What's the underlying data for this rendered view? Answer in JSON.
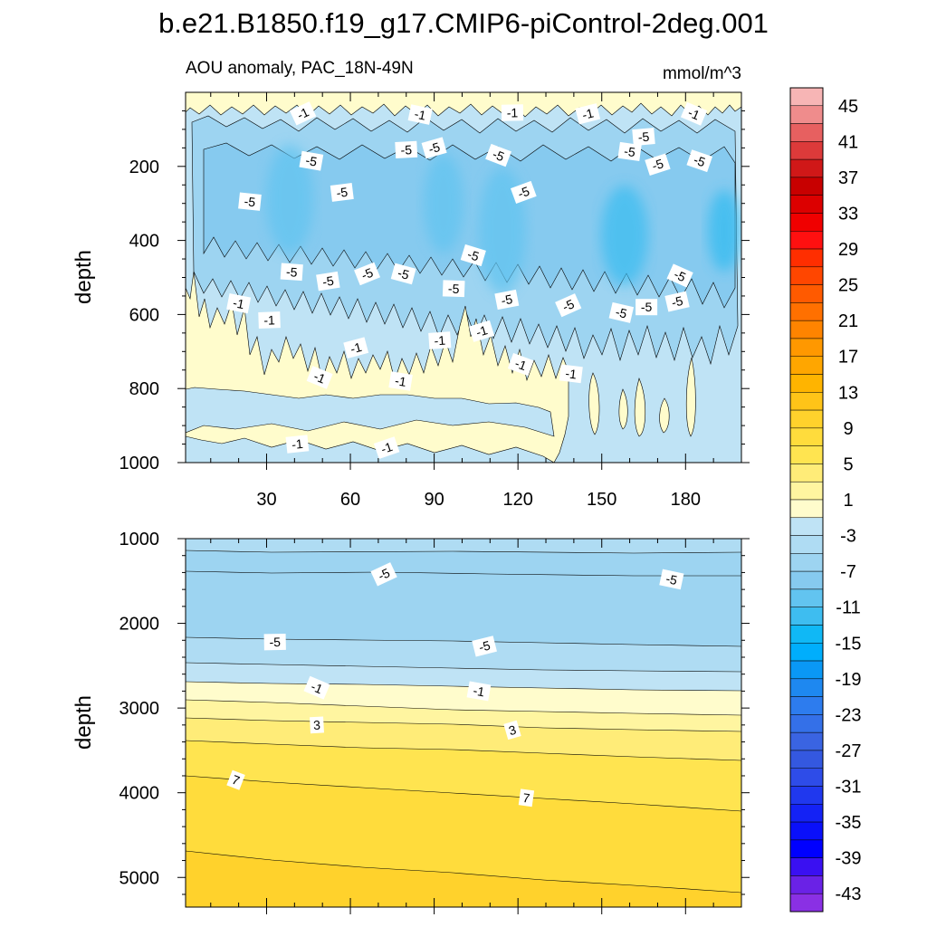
{
  "figure": {
    "title": "b.e21.B1850.f19_g17.CMIP6-piControl-2deg.001",
    "subtitle_left": "AOU anomaly, PAC_18N-49N",
    "subtitle_right": "mmol/m^3"
  },
  "chart_data": [
    {
      "type": "contour",
      "panel": "upper",
      "ylabel": "depth",
      "xlabel": "",
      "xlim": [
        1,
        200
      ],
      "ylim": [
        1000,
        0
      ],
      "x_ticks": [
        30,
        60,
        90,
        120,
        150,
        180
      ],
      "x_tick_labels": [
        "30",
        "60",
        "90",
        "120",
        "150",
        "180"
      ],
      "y_ticks": [
        200,
        400,
        600,
        800,
        1000
      ],
      "y_tick_labels": [
        "200",
        "400",
        "600",
        "800",
        "1000"
      ],
      "contour_labels": [
        {
          "text": "-1",
          "x": 43,
          "y": 57
        },
        {
          "text": "-1",
          "x": 85,
          "y": 60
        },
        {
          "text": "-1",
          "x": 118,
          "y": 55
        },
        {
          "text": "-1",
          "x": 145,
          "y": 58
        },
        {
          "text": "-1",
          "x": 183,
          "y": 58
        },
        {
          "text": "-5",
          "x": 46,
          "y": 185
        },
        {
          "text": "-5",
          "x": 80,
          "y": 155
        },
        {
          "text": "-5",
          "x": 90,
          "y": 150
        },
        {
          "text": "-5",
          "x": 113,
          "y": 170
        },
        {
          "text": "-5",
          "x": 160,
          "y": 160
        },
        {
          "text": "-5",
          "x": 165,
          "y": 120
        },
        {
          "text": "-5",
          "x": 170,
          "y": 195
        },
        {
          "text": "-5",
          "x": 185,
          "y": 185
        },
        {
          "text": "-5",
          "x": 24,
          "y": 295
        },
        {
          "text": "-5",
          "x": 57,
          "y": 270
        },
        {
          "text": "-5",
          "x": 122,
          "y": 270
        },
        {
          "text": "-5",
          "x": 104,
          "y": 440
        },
        {
          "text": "-5",
          "x": 39,
          "y": 485
        },
        {
          "text": "-5",
          "x": 52,
          "y": 510
        },
        {
          "text": "-5",
          "x": 66,
          "y": 490
        },
        {
          "text": "-5",
          "x": 79,
          "y": 490
        },
        {
          "text": "-5",
          "x": 97,
          "y": 530
        },
        {
          "text": "-5",
          "x": 116,
          "y": 560
        },
        {
          "text": "-5",
          "x": 138,
          "y": 575
        },
        {
          "text": "-5",
          "x": 157,
          "y": 595
        },
        {
          "text": "-5",
          "x": 166,
          "y": 580
        },
        {
          "text": "-5",
          "x": 177,
          "y": 565
        },
        {
          "text": "-5",
          "x": 178,
          "y": 495
        },
        {
          "text": "-1",
          "x": 20,
          "y": 570
        },
        {
          "text": "-1",
          "x": 31,
          "y": 615
        },
        {
          "text": "-1",
          "x": 62,
          "y": 690
        },
        {
          "text": "-1",
          "x": 49,
          "y": 770
        },
        {
          "text": "-1",
          "x": 78,
          "y": 780
        },
        {
          "text": "-1",
          "x": 92,
          "y": 670
        },
        {
          "text": "-1",
          "x": 107,
          "y": 645
        },
        {
          "text": "-1",
          "x": 121,
          "y": 735
        },
        {
          "text": "-1",
          "x": 139,
          "y": 760
        },
        {
          "text": "-1",
          "x": 41,
          "y": 950
        },
        {
          "text": "-1",
          "x": 73,
          "y": 960
        }
      ]
    },
    {
      "type": "contour",
      "panel": "lower",
      "ylabel": "depth",
      "xlabel": "",
      "xlim": [
        1,
        200
      ],
      "ylim": [
        5350,
        1000
      ],
      "y_ticks": [
        1000,
        2000,
        3000,
        4000,
        5000
      ],
      "y_tick_labels": [
        "1000",
        "2000",
        "3000",
        "4000",
        "5000"
      ],
      "contour_labels": [
        {
          "text": "-5",
          "x": 72,
          "y": 1420
        },
        {
          "text": "-5",
          "x": 175,
          "y": 1480
        },
        {
          "text": "-5",
          "x": 33,
          "y": 2220
        },
        {
          "text": "-5",
          "x": 108,
          "y": 2270
        },
        {
          "text": "-1",
          "x": 48,
          "y": 2760
        },
        {
          "text": "-1",
          "x": 106,
          "y": 2800
        },
        {
          "text": "3",
          "x": 48,
          "y": 3200
        },
        {
          "text": "3",
          "x": 118,
          "y": 3260
        },
        {
          "text": "7",
          "x": 19,
          "y": 3850
        },
        {
          "text": "7",
          "x": 123,
          "y": 4060
        }
      ]
    },
    {
      "type": "colorbar",
      "orientation": "vertical",
      "units": "mmol/m^3",
      "tick_labels": [
        "45",
        "41",
        "37",
        "33",
        "29",
        "25",
        "21",
        "17",
        "13",
        "9",
        "5",
        "1",
        "-3",
        "-7",
        "-11",
        "-15",
        "-19",
        "-23",
        "-27",
        "-31",
        "-35",
        "-39",
        "-43"
      ],
      "colors_top_to_bottom": [
        "#f7b5b5",
        "#ef8c8c",
        "#e76060",
        "#dd3a3a",
        "#d01818",
        "#c80000",
        "#dc0000",
        "#f00000",
        "#ff1010",
        "#ff2e00",
        "#ff4600",
        "#ff5a00",
        "#ff7000",
        "#ff8400",
        "#ff9800",
        "#ffa600",
        "#ffb400",
        "#ffc418",
        "#ffd22c",
        "#ffdc3c",
        "#ffe450",
        "#ffec78",
        "#fff5a0",
        "#fffccc",
        "#bfe3f5",
        "#afdcf3",
        "#9dd4f1",
        "#86caef",
        "#62c4f0",
        "#3ebdf0",
        "#10b8f5",
        "#00aefc",
        "#0a98f5",
        "#1e88f0",
        "#2d7cee",
        "#3470e8",
        "#3a64e2",
        "#3458e0",
        "#2e4ce8",
        "#2038ee",
        "#1422f5",
        "#0a10fa",
        "#0000ff",
        "#3a10f2",
        "#6a22e6",
        "#8a30e4"
      ]
    }
  ]
}
